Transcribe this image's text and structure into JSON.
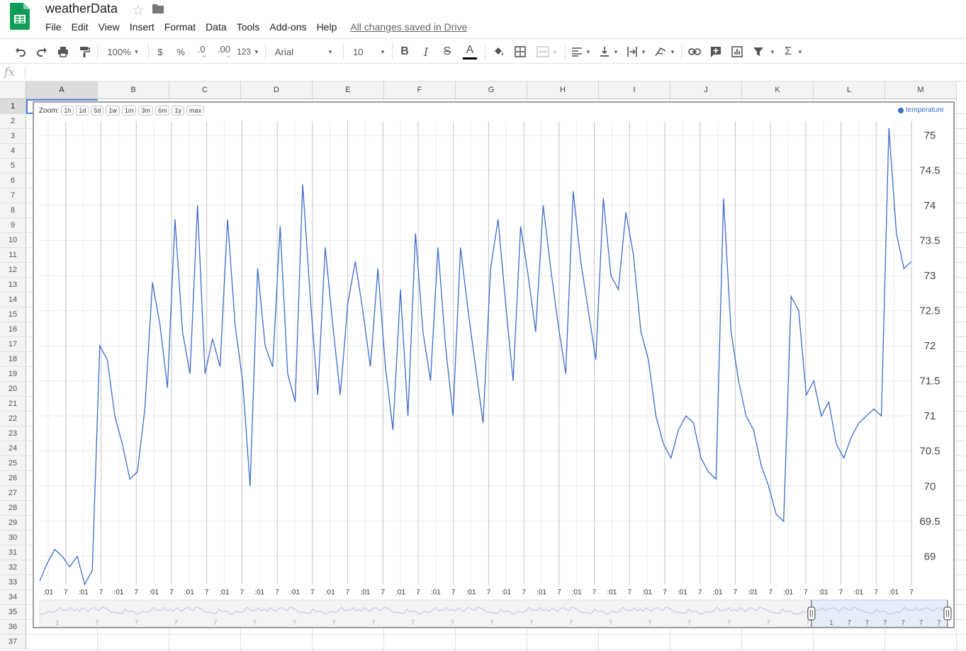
{
  "header": {
    "title": "weatherData",
    "icons": {
      "logo": "sheets-logo-icon",
      "star": "star-icon",
      "folder": "folder-icon"
    }
  },
  "menubar": {
    "items": [
      "File",
      "Edit",
      "View",
      "Insert",
      "Format",
      "Data",
      "Tools",
      "Add-ons",
      "Help"
    ],
    "save_status": "All changes saved in Drive"
  },
  "toolbar": {
    "zoom": "100%",
    "currency": "$",
    "percent": "%",
    "decrease_decimal": ".0",
    "increase_decimal": ".00",
    "more_formats": "123",
    "font": "Arial",
    "font_size": "10"
  },
  "formula_bar": {
    "fx_label": "fx",
    "value": ""
  },
  "grid": {
    "columns": [
      "A",
      "B",
      "C",
      "D",
      "E",
      "F",
      "G",
      "H",
      "I",
      "J",
      "K",
      "L",
      "M"
    ],
    "rows": [
      "1",
      "2",
      "3",
      "4",
      "5",
      "6",
      "7",
      "8",
      "9",
      "10",
      "11",
      "12",
      "13",
      "14",
      "15",
      "16",
      "17",
      "18",
      "19",
      "20",
      "21",
      "22",
      "23",
      "24",
      "25",
      "26",
      "27",
      "28",
      "29",
      "30",
      "31",
      "32",
      "33",
      "34",
      "35",
      "36",
      "37"
    ],
    "selected_column": "A",
    "selected_row": "1"
  },
  "chart_data": {
    "type": "line",
    "zoom": {
      "label": "Zoom:",
      "buttons": [
        "1h",
        "1d",
        "5d",
        "1w",
        "1m",
        "3m",
        "6m",
        "1y",
        "max"
      ]
    },
    "series": [
      {
        "name": "temperature",
        "color": "#3c6bc9",
        "values": [
          68.65,
          68.9,
          69.1,
          69.0,
          68.85,
          69.0,
          68.6,
          68.8,
          72.0,
          71.8,
          71.0,
          70.6,
          70.1,
          70.2,
          71.1,
          72.9,
          72.3,
          71.4,
          73.8,
          72.2,
          71.6,
          74.0,
          71.6,
          72.1,
          71.7,
          73.8,
          72.3,
          71.5,
          70.0,
          73.1,
          72.0,
          71.7,
          73.7,
          71.6,
          71.2,
          74.3,
          72.7,
          71.3,
          73.4,
          72.3,
          71.3,
          72.6,
          73.2,
          72.5,
          71.7,
          73.1,
          71.7,
          70.8,
          72.8,
          71.0,
          73.6,
          72.2,
          71.5,
          73.4,
          72.0,
          71.0,
          73.4,
          72.5,
          71.7,
          70.9,
          73.1,
          73.8,
          72.6,
          71.5,
          73.7,
          73.0,
          72.2,
          74.0,
          73.1,
          72.3,
          71.6,
          74.2,
          73.2,
          72.5,
          71.8,
          74.1,
          73.0,
          72.8,
          73.9,
          73.3,
          72.2,
          71.8,
          71.0,
          70.6,
          70.4,
          70.8,
          71.0,
          70.9,
          70.4,
          70.2,
          70.1,
          74.1,
          72.2,
          71.5,
          71.0,
          70.8,
          70.3,
          70.0,
          69.6,
          69.5,
          72.7,
          72.5,
          71.3,
          71.5,
          71.0,
          71.2,
          70.6,
          70.4,
          70.7,
          70.9,
          71.0,
          71.1,
          71.0,
          75.1,
          73.6,
          73.1,
          73.2
        ]
      }
    ],
    "x_tick_labels": [
      ":01",
      "7",
      ":01",
      "7",
      ":01",
      "7",
      ":01",
      "7",
      ":01",
      "7",
      ":01",
      "7",
      ":01",
      "7",
      ":01",
      "7",
      ":01",
      "7",
      ":01",
      "7",
      ":01",
      "7",
      ":01",
      "7",
      ":01",
      "7",
      ":01",
      "7",
      ":01",
      "7",
      ":01",
      "7",
      ":01",
      "7",
      ":01",
      "7",
      ":01",
      "7",
      ":01",
      "7",
      ":01",
      "7",
      ":01",
      "7",
      ":01",
      "7",
      ":01",
      "7",
      ":01",
      "7"
    ],
    "y_ticks": [
      69,
      69.5,
      70,
      70.5,
      71,
      71.5,
      72,
      72.5,
      73,
      73.5,
      74,
      74.5,
      75
    ],
    "y_tick_labels": [
      "69",
      "69.5",
      "70",
      "70.5",
      "71",
      "71.5",
      "72",
      "72.5",
      "73",
      "73.5",
      "74",
      "74.5",
      "75"
    ],
    "ylim": [
      68.6,
      75.2
    ],
    "y_axis_side": "right",
    "legend": "top-right",
    "range_selector": {
      "labels": [
        "1",
        "7",
        "7",
        "7",
        "7",
        "7",
        "7",
        "7",
        "7",
        "7",
        "7",
        "7",
        "7",
        "7",
        "7",
        "7",
        "7",
        "7",
        "7",
        "7"
      ],
      "selected_labels": [
        "1",
        "7",
        "7",
        "7",
        "7",
        "7",
        "7"
      ],
      "selected_fraction": [
        0.85,
        1.0
      ]
    }
  }
}
